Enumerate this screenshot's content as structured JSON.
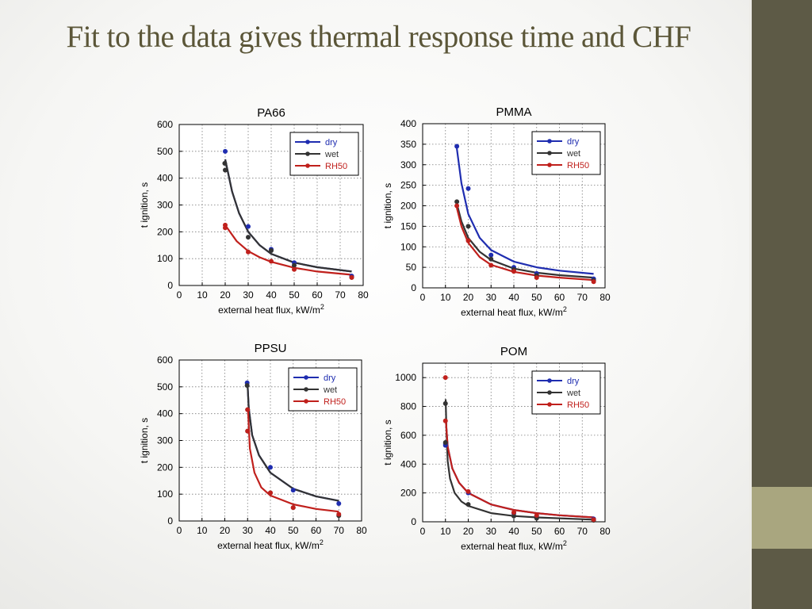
{
  "slide": {
    "title": "Fit to the data gives thermal response time and CHF",
    "colors": {
      "background": "#ffffff",
      "title": "#5b5638",
      "sidebar_dark": "#5d5a46",
      "sidebar_light": "#a9a67f"
    }
  },
  "chart_data": [
    {
      "type": "scatter",
      "title": "PA66",
      "xlabel": "external heat flux, kW/m",
      "xlabel_sup": "2",
      "ylabel": "t  ignition, s",
      "xlim": [
        0,
        80
      ],
      "ylim": [
        0,
        600
      ],
      "xticks": [
        "0",
        "10",
        "20",
        "30",
        "40",
        "50",
        "60",
        "70",
        "80"
      ],
      "yticks": [
        "0",
        "100",
        "200",
        "300",
        "400",
        "500",
        "600"
      ],
      "grid": true,
      "legend": "top-right",
      "series": [
        {
          "name": "dry",
          "color": "#1f2db0",
          "points": [
            [
              20,
              500
            ],
            [
              30,
              220
            ],
            [
              40,
              135
            ],
            [
              50,
              85
            ],
            [
              75,
              35
            ]
          ],
          "fit": [
            [
              20,
              470
            ],
            [
              23,
              350
            ],
            [
              26,
              270
            ],
            [
              30,
              200
            ],
            [
              35,
              150
            ],
            [
              40,
              118
            ],
            [
              50,
              85
            ],
            [
              60,
              68
            ],
            [
              75,
              52
            ]
          ]
        },
        {
          "name": "wet",
          "color": "#333333",
          "points": [
            [
              19.8,
              455
            ],
            [
              20,
              430
            ],
            [
              30,
              180
            ],
            [
              40,
              130
            ],
            [
              50,
              75
            ],
            [
              75,
              30
            ]
          ],
          "fit": [
            [
              20,
              470
            ],
            [
              23,
              350
            ],
            [
              26,
              270
            ],
            [
              30,
              200
            ],
            [
              35,
              150
            ],
            [
              40,
              118
            ],
            [
              50,
              85
            ],
            [
              60,
              68
            ],
            [
              75,
              52
            ]
          ]
        },
        {
          "name": "RH50",
          "color": "#c0201c",
          "points": [
            [
              20,
              225
            ],
            [
              20,
              215
            ],
            [
              30,
              125
            ],
            [
              40,
              90
            ],
            [
              50,
              60
            ],
            [
              75,
              30
            ]
          ],
          "fit": [
            [
              20,
              225
            ],
            [
              25,
              165
            ],
            [
              30,
              128
            ],
            [
              35,
              105
            ],
            [
              40,
              88
            ],
            [
              50,
              66
            ],
            [
              60,
              52
            ],
            [
              75,
              40
            ]
          ]
        }
      ]
    },
    {
      "type": "scatter",
      "title": "PMMA",
      "xlabel": "external heat flux, kW/m",
      "xlabel_sup": "2",
      "ylabel": "t ignition, s",
      "xlim": [
        0,
        80
      ],
      "ylim": [
        0,
        400
      ],
      "xticks": [
        "0",
        "10",
        "20",
        "30",
        "40",
        "50",
        "60",
        "70",
        "80"
      ],
      "yticks": [
        "0",
        "50",
        "100",
        "150",
        "200",
        "250",
        "300",
        "350",
        "400"
      ],
      "grid": true,
      "legend": "top-right",
      "series": [
        {
          "name": "dry",
          "color": "#1f2db0",
          "points": [
            [
              15,
              345
            ],
            [
              20,
              242
            ],
            [
              30,
              80
            ],
            [
              40,
              50
            ],
            [
              50,
              35
            ],
            [
              75,
              22
            ]
          ],
          "fit": [
            [
              15,
              340
            ],
            [
              17,
              255
            ],
            [
              20,
              180
            ],
            [
              25,
              122
            ],
            [
              30,
              92
            ],
            [
              40,
              64
            ],
            [
              50,
              50
            ],
            [
              60,
              42
            ],
            [
              75,
              34
            ]
          ]
        },
        {
          "name": "wet",
          "color": "#333333",
          "points": [
            [
              15,
              210
            ],
            [
              20,
              150
            ],
            [
              30,
              70
            ],
            [
              40,
              45
            ],
            [
              50,
              30
            ],
            [
              75,
              18
            ]
          ],
          "fit": [
            [
              15,
              205
            ],
            [
              17,
              162
            ],
            [
              20,
              122
            ],
            [
              25,
              88
            ],
            [
              30,
              68
            ],
            [
              40,
              47
            ],
            [
              50,
              37
            ],
            [
              60,
              31
            ],
            [
              75,
              25
            ]
          ]
        },
        {
          "name": "RH50",
          "color": "#c0201c",
          "points": [
            [
              15,
              200
            ],
            [
              20,
              115
            ],
            [
              30,
              55
            ],
            [
              40,
              40
            ],
            [
              50,
              25
            ],
            [
              75,
              15
            ]
          ],
          "fit": [
            [
              15,
              195
            ],
            [
              17,
              150
            ],
            [
              20,
              110
            ],
            [
              25,
              75
            ],
            [
              30,
              56
            ],
            [
              40,
              39
            ],
            [
              50,
              30
            ],
            [
              60,
              25
            ],
            [
              75,
              19
            ]
          ]
        }
      ]
    },
    {
      "type": "scatter",
      "title": "PPSU",
      "xlabel": "external heat flux, kW/m",
      "xlabel_sup": "2",
      "ylabel": "t ignition, s",
      "xlim": [
        0,
        80
      ],
      "ylim": [
        0,
        600
      ],
      "xticks": [
        "0",
        "10",
        "20",
        "30",
        "40",
        "50",
        "60",
        "70",
        "80"
      ],
      "yticks": [
        "0",
        "100",
        "200",
        "300",
        "400",
        "500",
        "600"
      ],
      "grid": true,
      "legend": "top-right",
      "series": [
        {
          "name": "dry",
          "color": "#1f2db0",
          "points": [
            [
              29.8,
              515
            ],
            [
              40,
              200
            ],
            [
              50,
              115
            ],
            [
              70,
              65
            ]
          ],
          "fit": [
            [
              29.9,
              520
            ],
            [
              30.5,
              420
            ],
            [
              32,
              320
            ],
            [
              35,
              245
            ],
            [
              40,
              180
            ],
            [
              50,
              120
            ],
            [
              60,
              92
            ],
            [
              70,
              75
            ]
          ]
        },
        {
          "name": "wet",
          "color": "#333333",
          "points": [
            [
              29.8,
              505
            ],
            [
              30,
              335
            ],
            [
              30,
              415
            ],
            [
              40,
              105
            ],
            [
              50,
              50
            ],
            [
              70,
              20
            ]
          ],
          "fit": [
            [
              29.9,
              520
            ],
            [
              30.5,
              420
            ],
            [
              32,
              320
            ],
            [
              35,
              245
            ],
            [
              40,
              180
            ],
            [
              50,
              120
            ],
            [
              60,
              92
            ],
            [
              70,
              75
            ]
          ]
        },
        {
          "name": "RH50",
          "color": "#c0201c",
          "points": [
            [
              30,
              415
            ],
            [
              30,
              335
            ],
            [
              40,
              105
            ],
            [
              50,
              50
            ],
            [
              70,
              25
            ]
          ],
          "fit": [
            [
              30.2,
              410
            ],
            [
              31,
              270
            ],
            [
              33,
              180
            ],
            [
              36,
              125
            ],
            [
              40,
              95
            ],
            [
              50,
              62
            ],
            [
              60,
              45
            ],
            [
              70,
              35
            ]
          ]
        }
      ]
    },
    {
      "type": "scatter",
      "title": "POM",
      "xlabel": "external heat flux, kW/m",
      "xlabel_sup": "2",
      "ylabel": "t ignition, s",
      "xlim": [
        0,
        80
      ],
      "ylim": [
        0,
        1100
      ],
      "xticks": [
        "0",
        "10",
        "20",
        "30",
        "40",
        "50",
        "60",
        "70",
        "80"
      ],
      "yticks": [
        "0",
        "200",
        "400",
        "600",
        "800",
        "1000"
      ],
      "grid": true,
      "legend": "top-right",
      "series": [
        {
          "name": "dry",
          "color": "#1f2db0",
          "points": [
            [
              10,
              540
            ],
            [
              10,
              530
            ],
            [
              20,
              200
            ],
            [
              40,
              60
            ],
            [
              50,
              40
            ],
            [
              75,
              20
            ]
          ],
          "fit": [
            [
              10.2,
              700
            ],
            [
              11,
              520
            ],
            [
              13,
              370
            ],
            [
              16,
              270
            ],
            [
              20,
              200
            ],
            [
              30,
              120
            ],
            [
              40,
              82
            ],
            [
              50,
              60
            ],
            [
              60,
              45
            ],
            [
              75,
              30
            ]
          ]
        },
        {
          "name": "wet",
          "color": "#333333",
          "points": [
            [
              10,
              820
            ],
            [
              10,
              550
            ],
            [
              20,
              120
            ],
            [
              40,
              40
            ],
            [
              50,
              25
            ],
            [
              75,
              10
            ]
          ],
          "fit": [
            [
              10.1,
              850
            ],
            [
              10.5,
              600
            ],
            [
              11,
              420
            ],
            [
              12,
              300
            ],
            [
              14,
              200
            ],
            [
              17,
              140
            ],
            [
              20,
              110
            ],
            [
              30,
              60
            ],
            [
              40,
              40
            ],
            [
              50,
              30
            ],
            [
              75,
              15
            ]
          ]
        },
        {
          "name": "RH50",
          "color": "#c0201c",
          "points": [
            [
              10,
              1000
            ],
            [
              10,
              700
            ],
            [
              20,
              210
            ],
            [
              40,
              65
            ],
            [
              50,
              45
            ],
            [
              75,
              15
            ]
          ],
          "fit": [
            [
              10.2,
              700
            ],
            [
              11,
              520
            ],
            [
              13,
              370
            ],
            [
              16,
              270
            ],
            [
              20,
              200
            ],
            [
              30,
              120
            ],
            [
              40,
              82
            ],
            [
              50,
              60
            ],
            [
              60,
              45
            ],
            [
              75,
              30
            ]
          ]
        }
      ]
    }
  ]
}
